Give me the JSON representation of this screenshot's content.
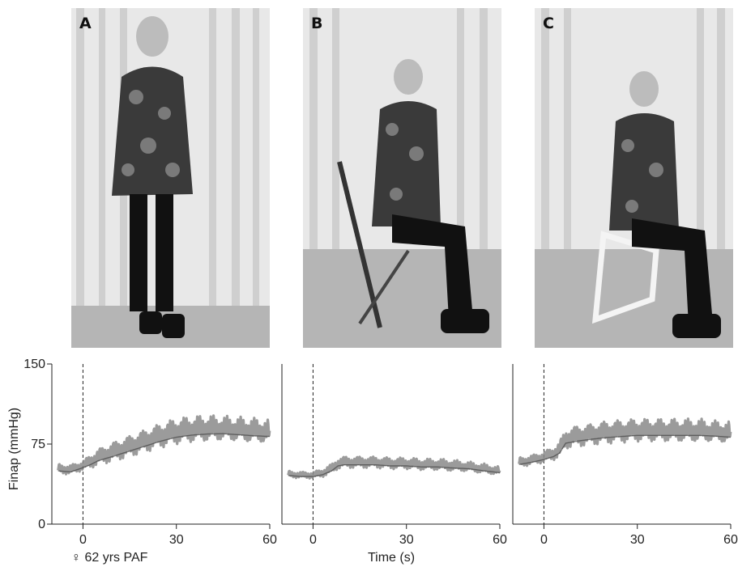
{
  "photos": [
    {
      "label": "A",
      "pose": "standing"
    },
    {
      "label": "B",
      "pose": "sitting-folding-stool"
    },
    {
      "label": "C",
      "pose": "sitting-folding-chair"
    }
  ],
  "colors": {
    "trace": "#8a8a8a",
    "trace_dark": "#444444",
    "axis": "#222222",
    "curtain": "#e4e4e4",
    "floor": "#b9b9b9"
  },
  "chart_data": {
    "type": "line",
    "ylabel": "Finap (mmHg)",
    "xlabel": "Time (s)",
    "subject_label": "♀ 62 yrs PAF",
    "ylim": [
      0,
      150
    ],
    "yticks": [
      0,
      75,
      150
    ],
    "xlim": [
      -10,
      60
    ],
    "xticks": [
      0,
      30,
      60
    ],
    "event_marker_x": 0,
    "panels": [
      {
        "name": "A",
        "x": [
          -8,
          -4,
          0,
          2,
          5,
          10,
          15,
          20,
          25,
          30,
          35,
          40,
          45,
          50,
          55,
          60
        ],
        "mean": [
          52,
          51,
          55,
          58,
          63,
          68,
          73,
          78,
          83,
          87,
          89,
          90,
          90,
          89,
          88,
          87
        ],
        "amplitude": [
          6,
          6,
          6,
          8,
          10,
          12,
          13,
          14,
          15,
          16,
          16,
          16,
          15,
          15,
          15,
          14
        ]
      },
      {
        "name": "B",
        "x": [
          -8,
          -4,
          0,
          3,
          6,
          8,
          10,
          15,
          20,
          25,
          30,
          35,
          40,
          45,
          50,
          55,
          60
        ],
        "mean": [
          47,
          46,
          46,
          48,
          52,
          57,
          58,
          58,
          58,
          57,
          57,
          56,
          56,
          55,
          54,
          52,
          50
        ],
        "amplitude": [
          4,
          4,
          4,
          5,
          6,
          7,
          7,
          7,
          7,
          7,
          7,
          7,
          7,
          7,
          6,
          6,
          5
        ]
      },
      {
        "name": "C",
        "x": [
          -8,
          -4,
          0,
          3,
          5,
          7,
          10,
          15,
          20,
          25,
          30,
          35,
          40,
          45,
          50,
          55,
          60
        ],
        "mean": [
          58,
          60,
          63,
          66,
          70,
          80,
          82,
          84,
          86,
          87,
          88,
          88,
          88,
          88,
          88,
          87,
          86
        ],
        "amplitude": [
          6,
          6,
          7,
          8,
          10,
          12,
          13,
          13,
          14,
          14,
          14,
          14,
          14,
          14,
          14,
          13,
          13
        ]
      }
    ]
  }
}
